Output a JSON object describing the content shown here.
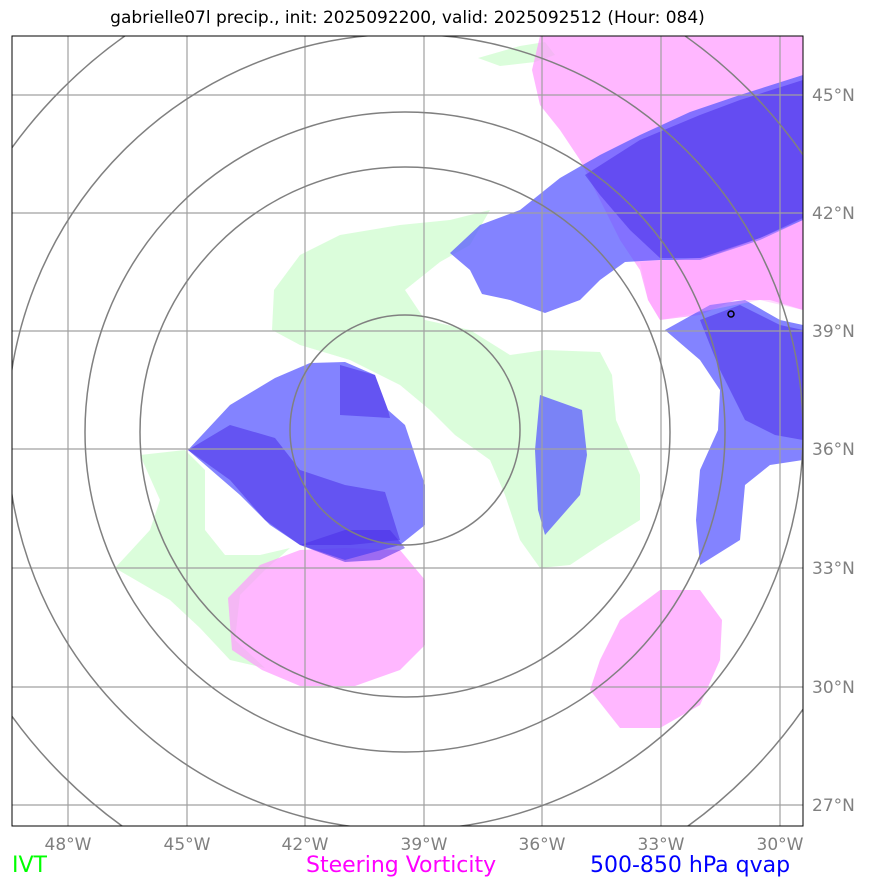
{
  "title": "gabrielle07l precip., init: 2025092200, valid: 2025092512 (Hour: 084)",
  "legend": [
    {
      "label": "IVT",
      "color": "#00ff00"
    },
    {
      "label": "Steering Vorticity",
      "color": "#ff00ff"
    },
    {
      "label": "500-850 hPa qvap",
      "color": "#0000ff"
    }
  ],
  "lat_labels": [
    "45°N",
    "42°N",
    "39°N",
    "36°N",
    "33°N",
    "30°N",
    "27°N"
  ],
  "lon_labels": [
    "48°W",
    "45°W",
    "42°W",
    "39°W",
    "36°W",
    "33°W",
    "30°W"
  ],
  "colors": {
    "ivt_fill": "#d9fdd9",
    "vort_fill": "#ffb3ff",
    "qvap_fill": "#6a6aff",
    "qvap_dark": "#5b3bff",
    "grid": "#a0a0a0",
    "rings": "#808080"
  },
  "storm_center_marker": "circle"
}
